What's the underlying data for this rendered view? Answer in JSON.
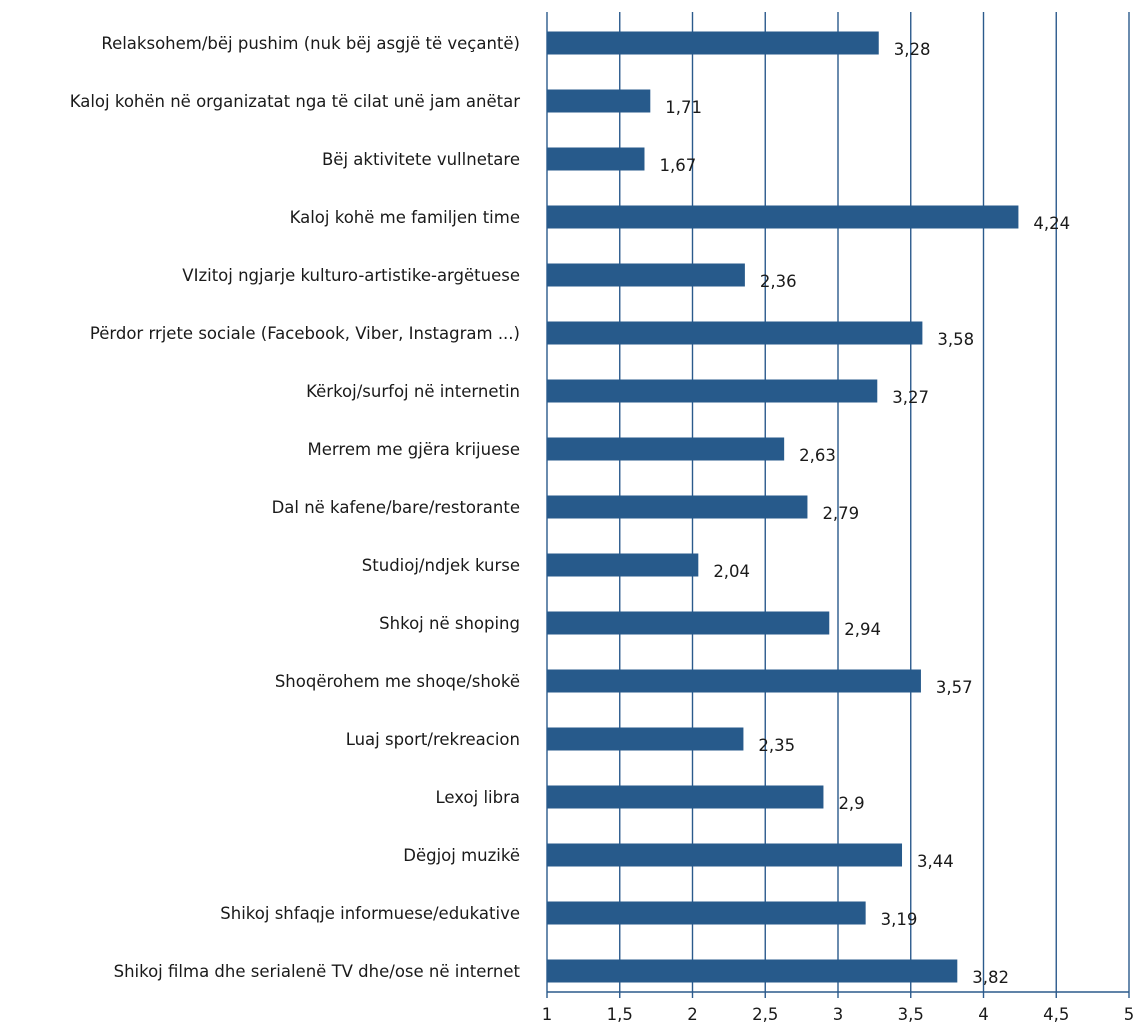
{
  "chart_data": {
    "type": "bar",
    "orientation": "horizontal",
    "categories": [
      "Relaksohem/bëj pushim (nuk bëj asgjë të veçantë)",
      "Kaloj kohën në organizatat nga të cilat unë jam anëtar",
      "Bëj aktivitete vullnetare",
      "Kaloj kohë me familjen time",
      "VIzitoj ngjarje kulturo-artistike-argëtuese",
      "Përdor rrjete sociale (Facebook, Viber, Instagram ...)",
      "Kërkoj/surfoj në internetin",
      "Merrem me gjëra krijuese",
      "Dal në kafene/bare/restorante",
      "Studioj/ndjek kurse",
      "Shkoj në shoping",
      "Shoqërohem me shoqe/shokë",
      "Luaj sport/rekreacion",
      "Lexoj libra",
      "Dëgjoj muzikë",
      "Shikoj shfaqje informuese/edukative",
      "Shikoj filma dhe serialenë TV dhe/ose në internet"
    ],
    "values": [
      3.28,
      1.71,
      1.67,
      4.24,
      2.36,
      3.58,
      3.27,
      2.63,
      2.79,
      2.04,
      2.94,
      3.57,
      2.35,
      2.9,
      3.44,
      3.19,
      3.82
    ],
    "value_labels": [
      "3,28",
      "1,71",
      "1,67",
      "4,24",
      "2,36",
      "3,58",
      "3,27",
      "2,63",
      "2,79",
      "2,04",
      "2,94",
      "3,57",
      "2,35",
      "2,9",
      "3,44",
      "3,19",
      "3,82"
    ],
    "xlim": [
      1,
      5
    ],
    "ticks": [
      1,
      1.5,
      2,
      2.5,
      3,
      3.5,
      4,
      4.5,
      5
    ],
    "tick_labels": [
      "1",
      "1,5",
      "2",
      "2,5",
      "3",
      "3,5",
      "4",
      "4,5",
      "5"
    ],
    "grid": true,
    "bar_color": "#275a8b",
    "grid_color": "#2b5a8c"
  }
}
